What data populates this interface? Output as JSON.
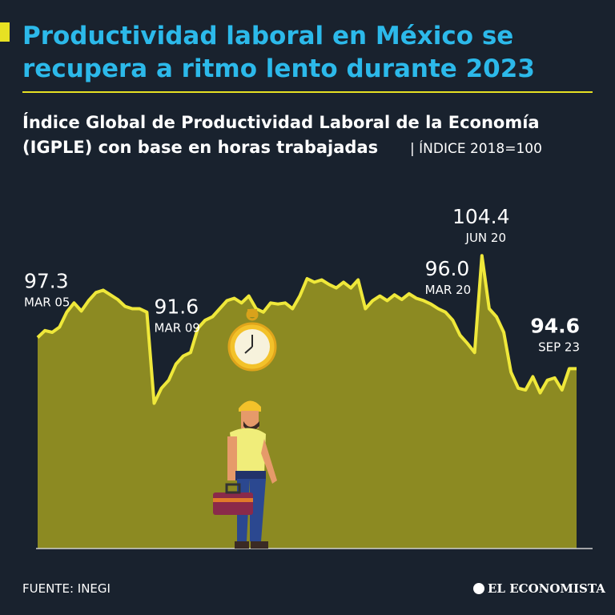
{
  "chart_data": {
    "type": "area",
    "title": [
      "Productividad laboral en México se",
      "recupera a ritmo lento durante 2023"
    ],
    "subtitle": [
      "Índice Global de Productividad Laboral de la Economía",
      "(IGPLE) con base en horas trabajadas"
    ],
    "unit": "| ÍNDICE 2018=100",
    "source": "FUENTE: INEGI",
    "brand": "EL ECONOMISTA",
    "categories": [
      "MAR 05",
      null,
      null,
      null,
      null,
      null,
      null,
      null,
      null,
      null,
      null,
      null,
      null,
      null,
      null,
      null,
      "MAR 09",
      null,
      null,
      null,
      null,
      null,
      null,
      null,
      null,
      null,
      null,
      null,
      null,
      null,
      null,
      null,
      null,
      null,
      null,
      null,
      null,
      null,
      null,
      null,
      null,
      null,
      null,
      null,
      null,
      null,
      null,
      null,
      null,
      null,
      null,
      null,
      null,
      null,
      null,
      null,
      null,
      null,
      null,
      null,
      "MAR 20",
      "JUN 20",
      null,
      null,
      null,
      null,
      null,
      null,
      null,
      null,
      null,
      null,
      null,
      null,
      "SEP 23"
    ],
    "values": [
      97.3,
      97.9,
      97.75,
      98.2,
      99.5,
      100.3,
      99.6,
      100.5,
      101.2,
      101.4,
      101.0,
      100.6,
      100.0,
      99.8,
      99.8,
      99.5,
      91.6,
      92.9,
      93.6,
      95.0,
      95.7,
      96.0,
      98.1,
      98.8,
      99.1,
      99.8,
      100.5,
      100.7,
      100.3,
      100.9,
      99.8,
      99.5,
      100.3,
      100.2,
      100.3,
      99.8,
      100.9,
      102.4,
      102.1,
      102.3,
      101.9,
      101.6,
      102.1,
      101.6,
      102.3,
      99.8,
      100.5,
      100.9,
      100.5,
      101.0,
      100.6,
      101.1,
      100.7,
      100.5,
      100.2,
      99.8,
      99.5,
      98.8,
      97.5,
      96.8,
      96.0,
      104.4,
      99.8,
      99.1,
      97.75,
      94.3,
      92.9,
      92.75,
      93.9,
      92.5,
      93.6,
      93.8,
      92.75,
      94.6,
      94.6
    ],
    "value_labels": [
      "97.3",
      null,
      null,
      null,
      null,
      null,
      null,
      null,
      null,
      null,
      null,
      null,
      null,
      null,
      null,
      null,
      "91.6",
      null,
      null,
      null,
      null,
      null,
      null,
      null,
      null,
      null,
      null,
      null,
      null,
      null,
      null,
      null,
      null,
      null,
      null,
      null,
      null,
      null,
      null,
      null,
      null,
      null,
      null,
      null,
      null,
      null,
      null,
      null,
      null,
      null,
      null,
      null,
      null,
      null,
      null,
      null,
      null,
      null,
      null,
      null,
      "96.0",
      "104.4",
      null,
      null,
      null,
      null,
      null,
      null,
      null,
      null,
      null,
      null,
      null,
      null,
      "94.6"
    ],
    "color": "#efe83a",
    "fill_color": "#8c8a22",
    "ylim": [
      79,
      110.5
    ]
  }
}
